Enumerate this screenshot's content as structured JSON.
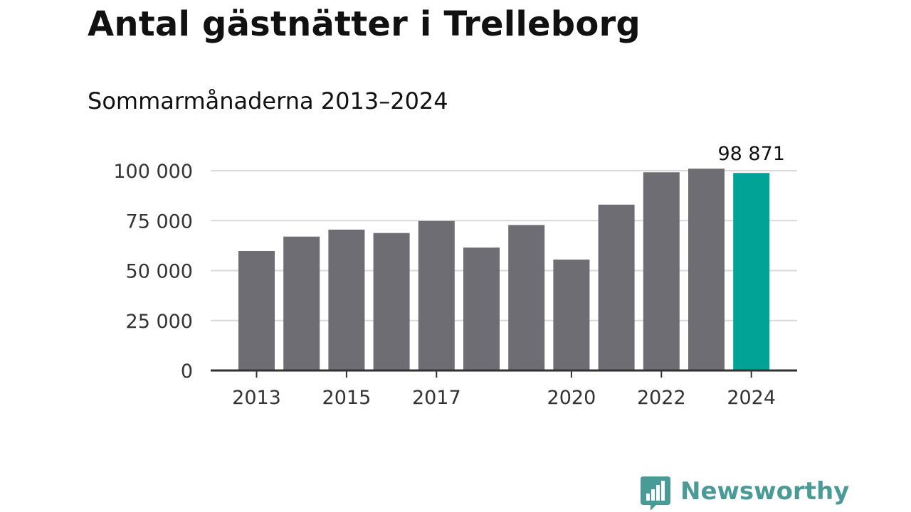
{
  "title": "Antal gästnätter i Trelleborg",
  "subtitle": "Sommarmånaderna 2013–2024",
  "colors": {
    "bar": "#6e6d74",
    "highlight": "#00a396",
    "grid": "#d9d9d9",
    "axis": "#333333",
    "text": "#333333",
    "brand": "#4a9a98"
  },
  "chart_data": {
    "type": "bar",
    "title": "Antal gästnätter i Trelleborg",
    "subtitle": "Sommarmånaderna 2013–2024",
    "categories": [
      "2013",
      "2014",
      "2015",
      "2016",
      "2017",
      "2018",
      "2019",
      "2020",
      "2021",
      "2022",
      "2023",
      "2024"
    ],
    "values": [
      59800,
      67000,
      70500,
      68800,
      74800,
      61500,
      72800,
      55500,
      83000,
      99200,
      101000,
      98871
    ],
    "highlight_index": 11,
    "ylim": [
      0,
      100000
    ],
    "yticks": [
      0,
      25000,
      50000,
      75000,
      100000
    ],
    "ytick_labels": [
      "0",
      "25 000",
      "50 000",
      "75 000",
      "100 000"
    ],
    "xtick_labels": [
      "2013",
      "2015",
      "2017",
      "2020",
      "2022",
      "2024"
    ],
    "annotation": {
      "label": "98 871",
      "category": "2024"
    },
    "grid": true,
    "xlabel": "",
    "ylabel": ""
  },
  "logo": {
    "text": "Newsworthy",
    "icon": "newsworthy-chart-bubble-icon"
  }
}
